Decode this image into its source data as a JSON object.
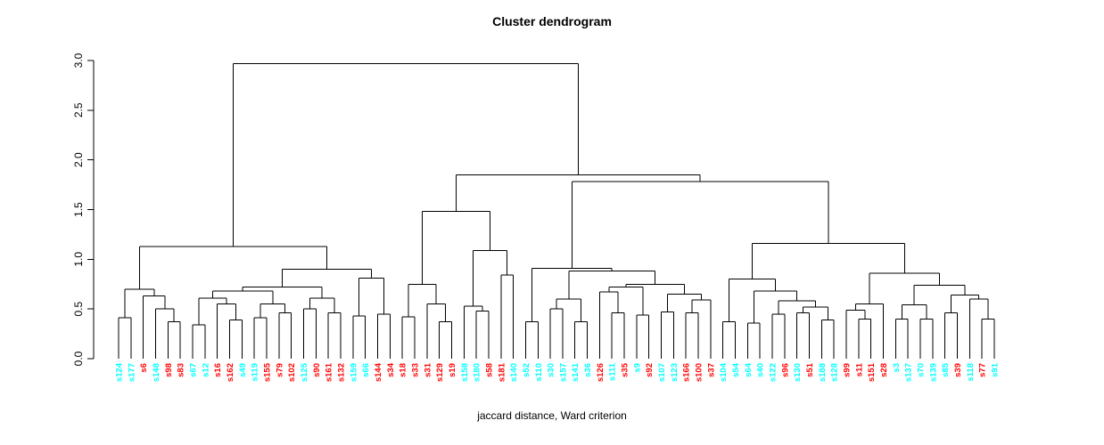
{
  "title": "Cluster dendrogram",
  "subtitle": "jaccard distance, Ward criterion",
  "y_axis": {
    "ticks": [
      "0.0",
      "0.5",
      "1.0",
      "1.5",
      "2.0",
      "2.5",
      "3.0"
    ],
    "min": 0,
    "max": 3
  },
  "colors": {
    "cyan": "#00FFFF",
    "red": "#FF0000",
    "line": "#000000"
  },
  "chart_data": {
    "type": "dendrogram",
    "title": "Cluster dendrogram",
    "xlabel": "jaccard distance, Ward criterion",
    "ylabel": "",
    "ylim": [
      0,
      3
    ],
    "grid": false,
    "leaves": [
      {
        "label": "s124",
        "color": "cyan"
      },
      {
        "label": "s177",
        "color": "cyan"
      },
      {
        "label": "s6",
        "color": "red"
      },
      {
        "label": "s148",
        "color": "cyan"
      },
      {
        "label": "s98",
        "color": "red"
      },
      {
        "label": "s83",
        "color": "red"
      },
      {
        "label": "s67",
        "color": "cyan"
      },
      {
        "label": "s12",
        "color": "cyan"
      },
      {
        "label": "s16",
        "color": "red"
      },
      {
        "label": "s162",
        "color": "red"
      },
      {
        "label": "s49",
        "color": "cyan"
      },
      {
        "label": "s119",
        "color": "cyan"
      },
      {
        "label": "s155",
        "color": "red"
      },
      {
        "label": "s79",
        "color": "red"
      },
      {
        "label": "s102",
        "color": "red"
      },
      {
        "label": "s125",
        "color": "cyan"
      },
      {
        "label": "s90",
        "color": "red"
      },
      {
        "label": "s161",
        "color": "red"
      },
      {
        "label": "s132",
        "color": "red"
      },
      {
        "label": "s159",
        "color": "cyan"
      },
      {
        "label": "s66",
        "color": "cyan"
      },
      {
        "label": "s144",
        "color": "red"
      },
      {
        "label": "s34",
        "color": "red"
      },
      {
        "label": "s18",
        "color": "red"
      },
      {
        "label": "s33",
        "color": "red"
      },
      {
        "label": "s31",
        "color": "red"
      },
      {
        "label": "s129",
        "color": "red"
      },
      {
        "label": "s19",
        "color": "red"
      },
      {
        "label": "s158",
        "color": "cyan"
      },
      {
        "label": "s180",
        "color": "cyan"
      },
      {
        "label": "s58",
        "color": "red"
      },
      {
        "label": "s181",
        "color": "red"
      },
      {
        "label": "s140",
        "color": "cyan"
      },
      {
        "label": "s52",
        "color": "cyan"
      },
      {
        "label": "s110",
        "color": "cyan"
      },
      {
        "label": "s30",
        "color": "cyan"
      },
      {
        "label": "s157",
        "color": "cyan"
      },
      {
        "label": "s141",
        "color": "cyan"
      },
      {
        "label": "s36",
        "color": "cyan"
      },
      {
        "label": "s126",
        "color": "red"
      },
      {
        "label": "s111",
        "color": "cyan"
      },
      {
        "label": "s35",
        "color": "red"
      },
      {
        "label": "s9",
        "color": "cyan"
      },
      {
        "label": "s92",
        "color": "red"
      },
      {
        "label": "s107",
        "color": "cyan"
      },
      {
        "label": "s123",
        "color": "cyan"
      },
      {
        "label": "s166",
        "color": "red"
      },
      {
        "label": "s100",
        "color": "red"
      },
      {
        "label": "s37",
        "color": "red"
      },
      {
        "label": "s104",
        "color": "cyan"
      },
      {
        "label": "s54",
        "color": "cyan"
      },
      {
        "label": "s64",
        "color": "cyan"
      },
      {
        "label": "s40",
        "color": "cyan"
      },
      {
        "label": "s122",
        "color": "cyan"
      },
      {
        "label": "s96",
        "color": "red"
      },
      {
        "label": "s130",
        "color": "cyan"
      },
      {
        "label": "s51",
        "color": "red"
      },
      {
        "label": "s188",
        "color": "cyan"
      },
      {
        "label": "s128",
        "color": "cyan"
      },
      {
        "label": "s99",
        "color": "red"
      },
      {
        "label": "s11",
        "color": "red"
      },
      {
        "label": "s151",
        "color": "red"
      },
      {
        "label": "s28",
        "color": "red"
      },
      {
        "label": "s3",
        "color": "cyan"
      },
      {
        "label": "s137",
        "color": "cyan"
      },
      {
        "label": "s70",
        "color": "cyan"
      },
      {
        "label": "s139",
        "color": "cyan"
      },
      {
        "label": "s85",
        "color": "cyan"
      },
      {
        "label": "s39",
        "color": "red"
      },
      {
        "label": "s118",
        "color": "cyan"
      },
      {
        "label": "s77",
        "color": "red"
      },
      {
        "label": "s91",
        "color": "cyan"
      }
    ],
    "tree": {
      "h": 2.97,
      "c": [
        {
          "h": 1.13,
          "c": [
            {
              "h": 0.7,
              "c": [
                {
                  "h": 0.41,
                  "c": [
                    "s124",
                    "s177"
                  ]
                },
                {
                  "h": 0.63,
                  "c": [
                    "s6",
                    {
                      "h": 0.5,
                      "c": [
                        "s148",
                        {
                          "h": 0.37,
                          "c": [
                            "s98",
                            "s83"
                          ]
                        }
                      ]
                    }
                  ]
                }
              ]
            },
            {
              "h": 0.9,
              "c": [
                {
                  "h": 0.72,
                  "c": [
                    {
                      "h": 0.68,
                      "c": [
                        {
                          "h": 0.61,
                          "c": [
                            {
                              "h": 0.34,
                              "c": [
                                "s67",
                                "s12"
                              ]
                            },
                            {
                              "h": 0.55,
                              "c": [
                                "s16",
                                {
                                  "h": 0.39,
                                  "c": [
                                    "s162",
                                    "s49"
                                  ]
                                }
                              ]
                            }
                          ]
                        },
                        {
                          "h": 0.55,
                          "c": [
                            {
                              "h": 0.41,
                              "c": [
                                "s119",
                                "s155"
                              ]
                            },
                            {
                              "h": 0.46,
                              "c": [
                                "s79",
                                "s102"
                              ]
                            }
                          ]
                        }
                      ]
                    },
                    {
                      "h": 0.61,
                      "c": [
                        {
                          "h": 0.5,
                          "c": [
                            "s125",
                            "s90"
                          ]
                        },
                        {
                          "h": 0.46,
                          "c": [
                            "s161",
                            "s132"
                          ]
                        }
                      ]
                    }
                  ]
                },
                {
                  "h": 0.81,
                  "c": [
                    {
                      "h": 0.43,
                      "c": [
                        "s159",
                        "s66"
                      ]
                    },
                    {
                      "h": 0.45,
                      "c": [
                        "s144",
                        "s34"
                      ]
                    }
                  ]
                }
              ]
            }
          ]
        },
        {
          "h": 1.85,
          "c": [
            {
              "h": 1.48,
              "c": [
                {
                  "h": 0.75,
                  "c": [
                    {
                      "h": 0.42,
                      "c": [
                        "s18",
                        "s33"
                      ]
                    },
                    {
                      "h": 0.55,
                      "c": [
                        "s31",
                        {
                          "h": 0.37,
                          "c": [
                            "s129",
                            "s19"
                          ]
                        }
                      ]
                    }
                  ]
                },
                {
                  "h": 1.09,
                  "c": [
                    {
                      "h": 0.53,
                      "c": [
                        "s158",
                        {
                          "h": 0.48,
                          "c": [
                            "s180",
                            "s58"
                          ]
                        }
                      ]
                    },
                    {
                      "h": 0.84,
                      "c": [
                        "s181",
                        "s140"
                      ]
                    }
                  ]
                }
              ]
            },
            {
              "h": 1.78,
              "c": [
                {
                  "h": 0.91,
                  "c": [
                    {
                      "h": 0.37,
                      "c": [
                        "s52",
                        "s110"
                      ]
                    },
                    {
                      "h": 0.88,
                      "c": [
                        {
                          "h": 0.6,
                          "c": [
                            {
                              "h": 0.5,
                              "c": [
                                "s30",
                                "s157"
                              ]
                            },
                            {
                              "h": 0.37,
                              "c": [
                                "s141",
                                "s36"
                              ]
                            }
                          ]
                        },
                        {
                          "h": 0.75,
                          "c": [
                            {
                              "h": 0.72,
                              "c": [
                                {
                                  "h": 0.67,
                                  "c": [
                                    "s126",
                                    {
                                      "h": 0.46,
                                      "c": [
                                        "s111",
                                        "s35"
                                      ]
                                    }
                                  ]
                                },
                                {
                                  "h": 0.44,
                                  "c": [
                                    "s9",
                                    "s92"
                                  ]
                                }
                              ]
                            },
                            {
                              "h": 0.65,
                              "c": [
                                {
                                  "h": 0.47,
                                  "c": [
                                    "s107",
                                    "s123"
                                  ]
                                },
                                {
                                  "h": 0.59,
                                  "c": [
                                    {
                                      "h": 0.46,
                                      "c": [
                                        "s166",
                                        "s100"
                                      ]
                                    },
                                    "s37"
                                  ]
                                }
                              ]
                            }
                          ]
                        }
                      ]
                    }
                  ]
                },
                {
                  "h": 1.16,
                  "c": [
                    {
                      "h": 0.8,
                      "c": [
                        {
                          "h": 0.37,
                          "c": [
                            "s104",
                            "s54"
                          ]
                        },
                        {
                          "h": 0.68,
                          "c": [
                            {
                              "h": 0.36,
                              "c": [
                                "s64",
                                "s40"
                              ]
                            },
                            {
                              "h": 0.58,
                              "c": [
                                {
                                  "h": 0.45,
                                  "c": [
                                    "s122",
                                    "s96"
                                  ]
                                },
                                {
                                  "h": 0.52,
                                  "c": [
                                    {
                                      "h": 0.46,
                                      "c": [
                                        "s130",
                                        "s51"
                                      ]
                                    },
                                    {
                                      "h": 0.39,
                                      "c": [
                                        "s188",
                                        "s128"
                                      ]
                                    }
                                  ]
                                }
                              ]
                            }
                          ]
                        }
                      ]
                    },
                    {
                      "h": 0.86,
                      "c": [
                        {
                          "h": 0.55,
                          "c": [
                            {
                              "h": 0.49,
                              "c": [
                                "s99",
                                {
                                  "h": 0.4,
                                  "c": [
                                    "s11",
                                    "s151"
                                  ]
                                }
                              ]
                            },
                            "s28"
                          ]
                        },
                        {
                          "h": 0.74,
                          "c": [
                            {
                              "h": 0.54,
                              "c": [
                                {
                                  "h": 0.4,
                                  "c": [
                                    "s3",
                                    "s137"
                                  ]
                                },
                                {
                                  "h": 0.4,
                                  "c": [
                                    "s70",
                                    "s139"
                                  ]
                                }
                              ]
                            },
                            {
                              "h": 0.64,
                              "c": [
                                {
                                  "h": 0.46,
                                  "c": [
                                    "s85",
                                    "s39"
                                  ]
                                },
                                {
                                  "h": 0.6,
                                  "c": [
                                    "s118",
                                    {
                                      "h": 0.4,
                                      "c": [
                                        "s77",
                                        "s91"
                                      ]
                                    }
                                  ]
                                }
                              ]
                            }
                          ]
                        }
                      ]
                    }
                  ]
                }
              ]
            }
          ]
        }
      ]
    }
  }
}
